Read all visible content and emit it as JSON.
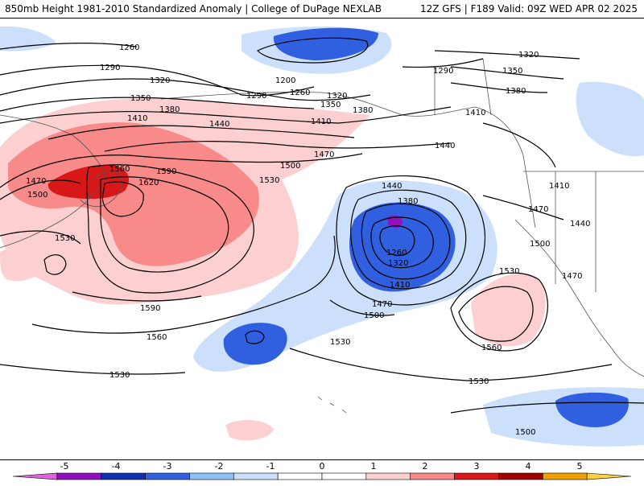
{
  "header": {
    "title_left": "850mb Height 1981-2010 Standardized Anomaly | College of DuPage NEXLAB",
    "title_right": "12Z GFS | F189 Valid: 09Z WED APR 02 2025"
  },
  "contours": [
    {
      "value": "1260",
      "label": "1260"
    },
    {
      "value": "1290",
      "label": "1290"
    },
    {
      "value": "1320",
      "label": "1320"
    },
    {
      "value": "1350",
      "label": "1350"
    },
    {
      "value": "1380",
      "label": "1380"
    },
    {
      "value": "1410",
      "label": "1410"
    },
    {
      "value": "1440",
      "label": "1440"
    },
    {
      "value": "1470",
      "label": "1470"
    },
    {
      "value": "1500",
      "label": "1500"
    },
    {
      "value": "1530",
      "label": "1530"
    },
    {
      "value": "1560",
      "label": "1560"
    },
    {
      "value": "1590",
      "label": "1590"
    },
    {
      "value": "1620",
      "label": "1620"
    },
    {
      "value": "1200",
      "label": "1200"
    }
  ],
  "colorbar": {
    "ticks": [
      "-5",
      "-4",
      "-3",
      "-2",
      "-1",
      "0",
      "1",
      "2",
      "3",
      "4",
      "5"
    ],
    "colors": [
      "#e060e0",
      "#9010c0",
      "#1030b0",
      "#3060e0",
      "#90c0f8",
      "#cce0fc",
      "#ffffff",
      "#ffffff",
      "#fcd0d0",
      "#f88a8a",
      "#d81818",
      "#a00000",
      "#f0a000",
      "#ffd040"
    ]
  }
}
